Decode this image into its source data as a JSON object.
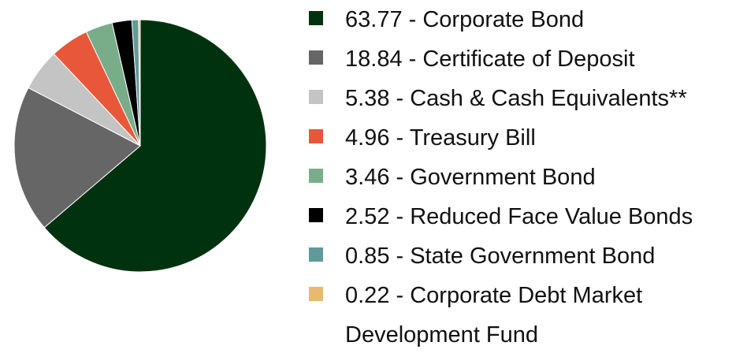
{
  "chart_data": {
    "type": "pie",
    "categories": [
      "63.77 - Corporate Bond",
      "18.84 - Certificate of Deposit",
      "5.38 - Cash & Cash Equivalents**",
      "4.96 - Treasury Bill",
      "3.46 - Government Bond",
      "2.52 - Reduced Face Value Bonds",
      "0.85 - State Government Bond",
      "0.22 - Corporate Debt Market Development Fund"
    ],
    "values": [
      63.77,
      18.84,
      5.38,
      4.96,
      3.46,
      2.52,
      0.85,
      0.22
    ],
    "colors": [
      "#01320f",
      "#666666",
      "#c4c4c4",
      "#e8573a",
      "#79ad8a",
      "#000000",
      "#5f9a9c",
      "#e8b96f"
    ],
    "legend": "right"
  }
}
